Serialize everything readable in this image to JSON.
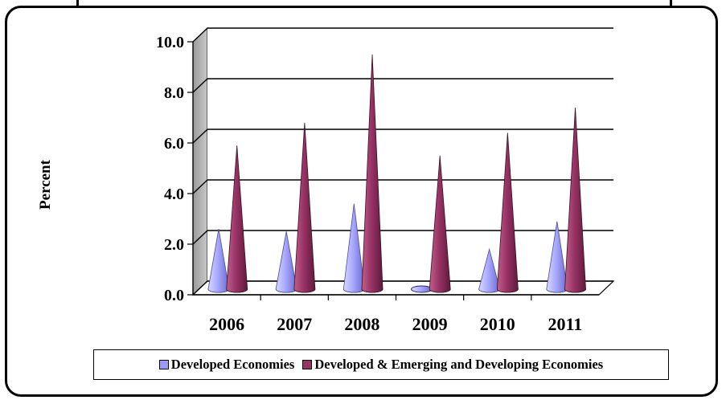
{
  "chart_data": {
    "type": "bar",
    "style": "3d-cone",
    "categories": [
      "2006",
      "2007",
      "2008",
      "2009",
      "2010",
      "2011"
    ],
    "series": [
      {
        "name": "Developed Economies",
        "color": "#9999ff",
        "values": [
          2.6,
          2.5,
          3.6,
          -0.3,
          1.8,
          2.9
        ]
      },
      {
        "name": "Developed & Emerging and Developing Economies",
        "color": "#993366",
        "values": [
          5.9,
          6.8,
          9.5,
          5.5,
          6.4,
          7.4
        ]
      }
    ],
    "ylabel": "Percent",
    "ylim": [
      0,
      10
    ],
    "yticks": [
      "0.0",
      "2.0",
      "4.0",
      "6.0",
      "8.0",
      "10.0"
    ],
    "grid": true,
    "legend_position": "bottom"
  }
}
